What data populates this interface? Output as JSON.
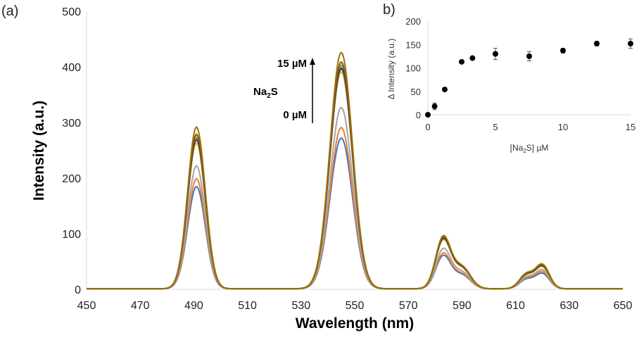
{
  "chart_data": [
    {
      "panel_label": "(a)",
      "type": "line",
      "xlabel": "Wavelength (nm)",
      "ylabel": "Intensity (a.u.)",
      "xlim": [
        450,
        650
      ],
      "ylim": [
        0,
        500
      ],
      "xticks": [
        450,
        470,
        490,
        510,
        530,
        550,
        570,
        590,
        610,
        630,
        650
      ],
      "yticks": [
        0,
        100,
        200,
        300,
        400,
        500
      ],
      "grid": false,
      "peak_wavelengths": [
        491,
        545,
        583,
        620
      ],
      "series": [
        {
          "color": "#4472C4",
          "peak_values": [
            184,
            271,
            58,
            27
          ]
        },
        {
          "color": "#ED7D31",
          "peak_values": [
            198,
            290,
            62,
            30
          ]
        },
        {
          "color": "#A5A5A5",
          "peak_values": [
            221,
            326,
            70,
            33
          ]
        },
        {
          "color": "#FFC000",
          "peak_values": [
            262,
            390,
            85,
            38
          ]
        },
        {
          "color": "#5B9BD5",
          "peak_values": [
            270,
            395,
            88,
            40
          ]
        },
        {
          "color": "#70AD47",
          "peak_values": [
            272,
            402,
            90,
            41
          ]
        },
        {
          "color": "#264478",
          "peak_values": [
            268,
            397,
            87,
            40
          ]
        },
        {
          "color": "#9E480E",
          "peak_values": [
            278,
            408,
            90,
            42
          ]
        },
        {
          "color": "#997300",
          "peak_values": [
            291,
            425,
            92,
            43
          ]
        }
      ],
      "annotation": {
        "top": "15 µM",
        "middle_base": "Na",
        "middle_sub": "2",
        "middle_end": "S",
        "bottom": "0 µM"
      }
    },
    {
      "panel_label": "b)",
      "type": "scatter",
      "xlabel_pre": "[Na",
      "xlabel_sub": "2",
      "xlabel_post": "S] µM",
      "ylabel": "Δ Intensity (a.u.)",
      "xlim": [
        0,
        15
      ],
      "ylim": [
        0,
        200
      ],
      "xticks": [
        0,
        5,
        10,
        15
      ],
      "yticks": [
        0,
        50,
        100,
        150,
        200
      ],
      "grid": false,
      "points": [
        {
          "x": 0,
          "y": 0,
          "err": 0
        },
        {
          "x": 0.5,
          "y": 18,
          "err": 7
        },
        {
          "x": 1.25,
          "y": 54,
          "err": 0
        },
        {
          "x": 2.5,
          "y": 113,
          "err": 0
        },
        {
          "x": 3.3,
          "y": 121,
          "err": 0
        },
        {
          "x": 5,
          "y": 130,
          "err": 12
        },
        {
          "x": 7.5,
          "y": 125,
          "err": 10
        },
        {
          "x": 10,
          "y": 137,
          "err": 5
        },
        {
          "x": 12.5,
          "y": 152,
          "err": 5
        },
        {
          "x": 15,
          "y": 152,
          "err": 10
        }
      ]
    }
  ]
}
